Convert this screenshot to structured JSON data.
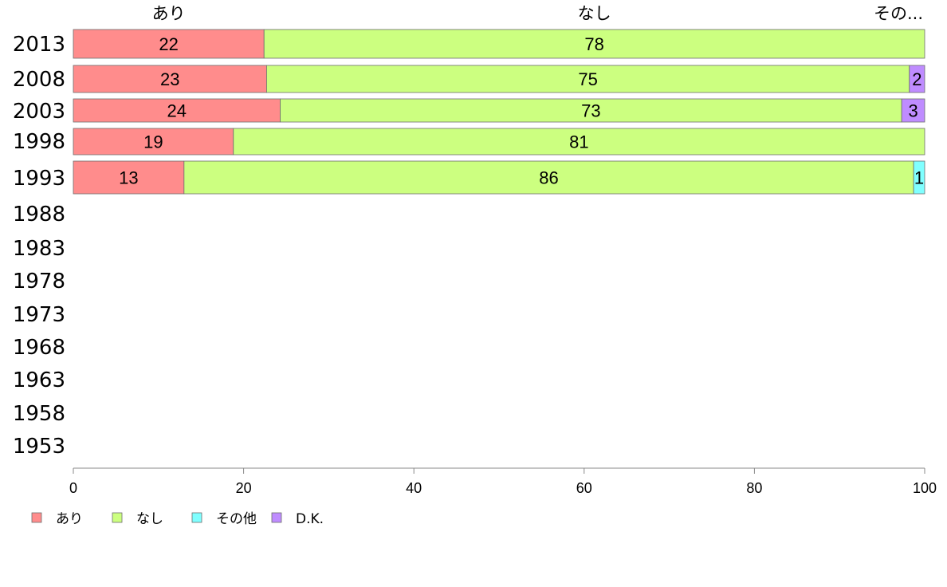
{
  "chart_data": {
    "type": "bar",
    "orientation": "horizontal",
    "stacked": true,
    "categories": [
      "2013",
      "2008",
      "2003",
      "1998",
      "1993",
      "1988",
      "1983",
      "1978",
      "1973",
      "1968",
      "1963",
      "1958",
      "1953"
    ],
    "series": [
      {
        "name": "あり",
        "color": "#ff8c8c",
        "values": [
          22.4,
          22.7,
          24.3,
          18.8,
          13.0,
          null,
          null,
          null,
          null,
          null,
          null,
          null,
          null
        ],
        "labels": [
          "22",
          "23",
          "24",
          "19",
          "13",
          "",
          "",
          "",
          "",
          "",
          "",
          "",
          ""
        ]
      },
      {
        "name": "なし",
        "color": "#ccff80",
        "values": [
          77.6,
          75.5,
          73.0,
          81.2,
          85.7,
          null,
          null,
          null,
          null,
          null,
          null,
          null,
          null
        ],
        "labels": [
          "78",
          "75",
          "73",
          "81",
          "86",
          "",
          "",
          "",
          "",
          "",
          "",
          "",
          ""
        ]
      },
      {
        "name": "その他",
        "color": "#80ffff",
        "values": [
          0,
          0,
          0,
          0,
          1.3,
          null,
          null,
          null,
          null,
          null,
          null,
          null,
          null
        ],
        "labels": [
          "",
          "",
          "",
          "",
          "1",
          "",
          "",
          "",
          "",
          "",
          "",
          "",
          ""
        ]
      },
      {
        "name": "D.K.",
        "color": "#bf8cff",
        "values": [
          0,
          1.8,
          2.7,
          0,
          0,
          null,
          null,
          null,
          null,
          null,
          null,
          null,
          null
        ],
        "labels": [
          "",
          "2",
          "3",
          "",
          "",
          "",
          "",
          "",
          "",
          "",
          "",
          "",
          ""
        ]
      }
    ],
    "top_labels": [
      "あり",
      "なし",
      "その..."
    ],
    "xticks": [
      "0",
      "20",
      "40",
      "60",
      "80",
      "100"
    ],
    "xlim": [
      0,
      100
    ],
    "grid": false,
    "legend": "bottom-left"
  }
}
